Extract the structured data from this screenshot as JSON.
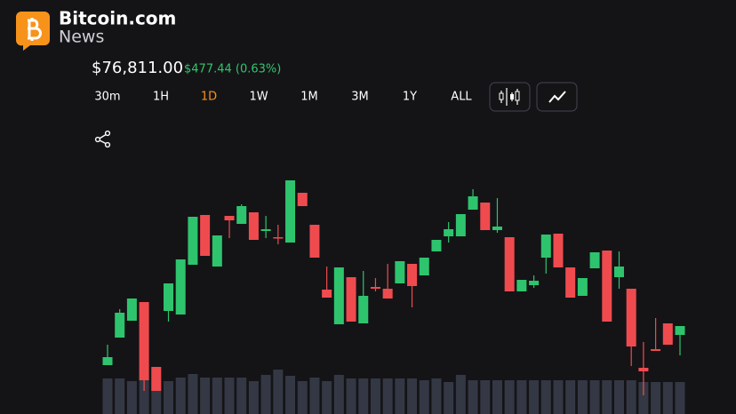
{
  "header": {
    "brand": "Bitcoin.com",
    "sub": "News"
  },
  "price": "$76,811.00",
  "change": "$477.44 (0.63%)",
  "timeframes": [
    "30m",
    "1H",
    "1D",
    "1W",
    "1M",
    "3M",
    "1Y",
    "ALL"
  ],
  "selected_timeframe": 2,
  "chart_data": {
    "type": "candlestick",
    "up_color": "#2ec46d",
    "down_color": "#ef4b4f",
    "volume_color": "#343844",
    "ylim": [
      75980,
      78480
    ],
    "volume_ylim": [
      0,
      60
    ],
    "open": [
      76370,
      76680,
      76870,
      77080,
      76350,
      76980,
      76940,
      77500,
      78060,
      77480,
      78050,
      77960,
      78090,
      77880,
      77810,
      77750,
      78310,
      77950,
      77220,
      76830,
      77360,
      76840,
      77250,
      77230,
      77290,
      77510,
      77380,
      77650,
      77820,
      77820,
      78120,
      78200,
      77890,
      77810,
      77200,
      77270,
      77580,
      77850,
      77470,
      77150,
      77460,
      77660,
      77360,
      77230,
      76340,
      76550,
      76840,
      76710
    ],
    "high": [
      76600,
      77000,
      77120,
      77080,
      76350,
      77290,
      77560,
      78040,
      78060,
      77830,
      78050,
      78180,
      78090,
      78050,
      77950,
      78450,
      78310,
      77950,
      77480,
      77470,
      77360,
      77430,
      77350,
      77510,
      77540,
      77510,
      77580,
      77780,
      77980,
      78070,
      78350,
      78200,
      78250,
      77810,
      77330,
      77380,
      77840,
      77850,
      77470,
      77350,
      77640,
      77660,
      77650,
      77230,
      76630,
      76900,
      76840,
      76810
    ],
    "low": [
      76370,
      76680,
      76870,
      76080,
      76080,
      76860,
      76940,
      77500,
      77600,
      77480,
      77800,
      77960,
      77780,
      77800,
      77730,
      77750,
      78160,
      77580,
      77130,
      76830,
      76860,
      76840,
      77200,
      77120,
      77290,
      77020,
      77380,
      77650,
      77750,
      77820,
      78120,
      77890,
      77860,
      77200,
      77200,
      77240,
      77400,
      77470,
      77130,
      77150,
      77460,
      76860,
      77230,
      76360,
      76030,
      76530,
      76600,
      76480
    ],
    "close": [
      76460,
      76960,
      77120,
      76200,
      76080,
      77290,
      77560,
      78040,
      77600,
      77830,
      78000,
      78160,
      77780,
      77900,
      77800,
      78450,
      78160,
      77580,
      77130,
      77470,
      76860,
      77150,
      77230,
      77120,
      77540,
      77260,
      77580,
      77780,
      77900,
      78070,
      78270,
      77890,
      77930,
      77200,
      77330,
      77320,
      77840,
      77470,
      77130,
      77350,
      77640,
      76860,
      77480,
      76580,
      76300,
      76530,
      76600,
      76810
    ],
    "volume": [
      40,
      40,
      37,
      44,
      50,
      37,
      41,
      45,
      41,
      41,
      41,
      41,
      37,
      44,
      50,
      43,
      37,
      41,
      37,
      44,
      40,
      40,
      40,
      40,
      40,
      40,
      38,
      40,
      36,
      44,
      38,
      38,
      38,
      38,
      38,
      38,
      38,
      38,
      38,
      38,
      38,
      38,
      38,
      38,
      36,
      36,
      36,
      36
    ]
  }
}
